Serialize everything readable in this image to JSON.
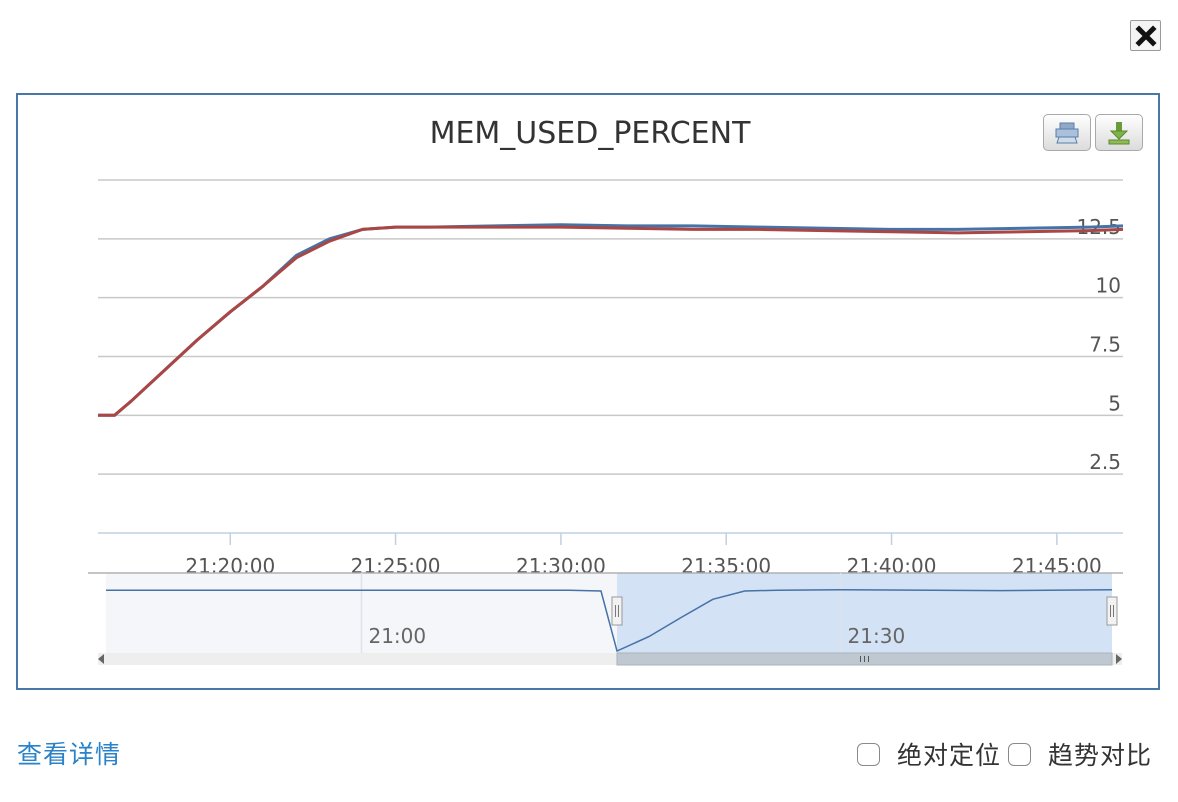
{
  "window": {
    "close_icon": "close-x-icon"
  },
  "toolbar": {
    "print_icon": "printer-icon",
    "download_icon": "download-icon"
  },
  "chart_data": {
    "type": "line",
    "title": "MEM_USED_PERCENT",
    "xlabel": "",
    "ylabel": "",
    "ylim": [
      0,
      15
    ],
    "yticks": [
      2.5,
      5,
      7.5,
      10,
      12.5
    ],
    "ytick_labels": [
      "2.5",
      "5",
      "7.5",
      "10",
      "12.5"
    ],
    "xlim": [
      "21:16:00",
      "21:47:00"
    ],
    "xtick_labels": [
      "21:20:00",
      "21:25:00",
      "21:30:00",
      "21:35:00",
      "21:40:00",
      "21:45:00"
    ],
    "grid": true,
    "legend": "none",
    "series": [
      {
        "color": "#4572a7",
        "x": [
          "21:16:00",
          "21:16:30",
          "21:17:00",
          "21:18:00",
          "21:19:00",
          "21:20:00",
          "21:21:00",
          "21:22:00",
          "21:23:00",
          "21:24:00",
          "21:25:00",
          "21:26:00",
          "21:28:00",
          "21:30:00",
          "21:32:00",
          "21:34:00",
          "21:36:00",
          "21:38:00",
          "21:40:00",
          "21:42:00",
          "21:44:00",
          "21:46:00",
          "21:47:00"
        ],
        "y": [
          5.0,
          5.0,
          5.6,
          6.9,
          8.2,
          9.4,
          10.5,
          11.8,
          12.5,
          12.9,
          13.0,
          13.0,
          13.05,
          13.1,
          13.05,
          13.05,
          13.0,
          12.95,
          12.9,
          12.9,
          12.95,
          13.0,
          13.05
        ]
      },
      {
        "color": "#aa4643",
        "x": [
          "21:16:00",
          "21:16:30",
          "21:17:00",
          "21:18:00",
          "21:19:00",
          "21:20:00",
          "21:21:00",
          "21:22:00",
          "21:23:00",
          "21:24:00",
          "21:25:00",
          "21:26:00",
          "21:28:00",
          "21:30:00",
          "21:32:00",
          "21:34:00",
          "21:36:00",
          "21:38:00",
          "21:40:00",
          "21:42:00",
          "21:44:00",
          "21:46:00",
          "21:47:00"
        ],
        "y": [
          5.0,
          5.0,
          5.6,
          6.9,
          8.2,
          9.4,
          10.5,
          11.7,
          12.4,
          12.9,
          13.0,
          13.0,
          13.0,
          13.0,
          12.95,
          12.9,
          12.9,
          12.85,
          12.8,
          12.75,
          12.8,
          12.85,
          12.9
        ]
      }
    ],
    "navigator": {
      "xlim": [
        "20:44:00",
        "21:47:00"
      ],
      "tick_labels": [
        "21:00",
        "21:30"
      ],
      "selected_range": [
        "21:16:00",
        "21:47:00"
      ],
      "x": [
        "20:44:00",
        "21:13:00",
        "21:15:00",
        "21:16:00",
        "21:18:00",
        "21:20:00",
        "21:22:00",
        "21:24:00",
        "21:26:00",
        "21:30:00",
        "21:40:00",
        "21:47:00"
      ],
      "y": [
        13.0,
        13.0,
        12.9,
        5.0,
        6.9,
        9.4,
        11.8,
        12.9,
        13.0,
        13.05,
        12.95,
        13.05
      ]
    }
  },
  "footer": {
    "details_label": "查看详情",
    "absolute_label": "绝对定位",
    "trend_label": "趋势对比"
  }
}
